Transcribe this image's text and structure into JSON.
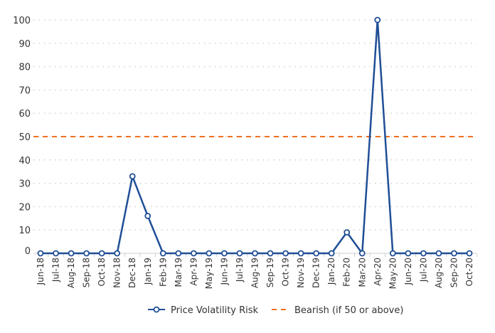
{
  "chart_data": {
    "type": "line",
    "categories": [
      "Jun-18",
      "Jul-18",
      "Aug-18",
      "Sep-18",
      "Oct-18",
      "Nov-18",
      "Dec-18",
      "Jan-19",
      "Feb-19",
      "Mar-19",
      "Apr-19",
      "May-19",
      "Jun-19",
      "Jul-19",
      "Aug-19",
      "Sep-19",
      "Oct-19",
      "Nov-19",
      "Dec-19",
      "Jan-20",
      "Feb-20",
      "Mar-20",
      "Apr-20",
      "May-20",
      "Jun-20",
      "Jul-20",
      "Aug-20",
      "Sep-20",
      "Oct-20"
    ],
    "series": [
      {
        "name": "Price Volatility Risk",
        "color": "#1f4e96",
        "values": [
          0,
          0,
          0,
          0,
          0,
          0,
          33,
          16,
          0,
          0,
          0,
          0,
          0,
          0,
          0,
          0,
          0,
          0,
          0,
          0,
          9,
          0,
          100,
          0,
          0,
          0,
          0,
          0,
          0
        ]
      },
      {
        "name": "Bearish (if 50 or above)",
        "color": "#f07020",
        "constant": 50,
        "style": "dashed"
      }
    ],
    "yticks": [
      "0",
      "10",
      "20",
      "30",
      "40",
      "50",
      "60",
      "70",
      "80",
      "90",
      "100"
    ],
    "ylim": [
      0,
      100
    ],
    "grid": true,
    "legend": "bottom-center"
  }
}
